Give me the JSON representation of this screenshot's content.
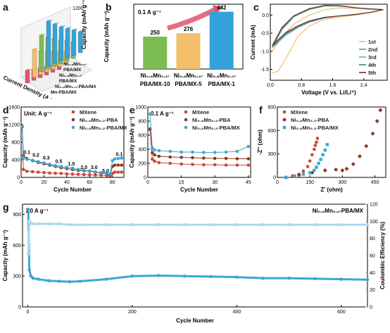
{
  "colors": {
    "mxene": "#c8473c",
    "pba": "#8b3a1f",
    "pbamx": "#3aa7d8",
    "ce": "#a9d9f2",
    "accent_arrow": "#e0556a",
    "bar_green": "#7dbb55",
    "bar_orange": "#f2c06a",
    "bar_blue": "#34a3dc",
    "ce_axis": "#f0a030"
  },
  "panels": {
    "a": {
      "label": "a",
      "zlabel": "Capacity (mAh g⁻¹)",
      "xlabel": "Current Density (A g⁻¹)",
      "ztick": "1200",
      "legend": [
        "Ni₀.₈Mn₀.₂-PBA/MX",
        "Ni₀.₈Mn₀.₂-PBA/MX",
        "Ni₀.₈Mn₀.₂-PBA/MX",
        "Mn-PBA/MX"
      ]
    },
    "b": {
      "label": "b",
      "rate": "0.1 A g⁻¹",
      "ylabel": "Capacity (mAh g⁻¹)"
    },
    "c": {
      "label": "c",
      "ylabel": "Current (mA)",
      "xlabel": "Voltage (V vs. Li/Li⁺)"
    },
    "d": {
      "label": "d",
      "unit_note": "Unit: A g⁻¹",
      "ylabel": "Capacity (mAh g⁻¹)",
      "xlabel": "Cycle Number"
    },
    "e": {
      "label": "e",
      "rate": "0.1 A g⁻¹",
      "ylabel": "Capacity (mAh g⁻¹)",
      "xlabel": "Cycle Number"
    },
    "f": {
      "label": "f",
      "ylabel": "-Z'' (ohm)",
      "xlabel": "Z' (ohm)"
    },
    "g": {
      "label": "g",
      "rate": "1.0 A g⁻¹",
      "material": "Ni₀.₈Mn₀.₂-PBA/MX",
      "ylabel": "Capacity (mAh g⁻¹)",
      "y2label": "Coulombic Efficiency (%)",
      "xlabel": "Cycle Number"
    }
  },
  "chart_data": [
    {
      "type": "bar",
      "panel": "b",
      "categories": [
        "Ni₀.₈Mn₀.₂-PBA/MX-10",
        "Ni₀.₈Mn₀.₂-PBA/MX-5",
        "Ni₀.₈Mn₀.₂-PBA/MX-1"
      ],
      "values": [
        250,
        276,
        442
      ],
      "data_labels": [
        "250",
        "276",
        "442"
      ],
      "ylabel": "Capacity (mAh g⁻¹)",
      "ylim": [
        0,
        500
      ]
    },
    {
      "type": "line",
      "panel": "c",
      "xlabel": "Voltage (V vs. Li/Li⁺)",
      "ylabel": "Current (mA)",
      "xlim": [
        0.0,
        3.0
      ],
      "ylim": [
        -1.8,
        0.3
      ],
      "xticks": [
        "0.0",
        "0.8",
        "1.6",
        "2.4"
      ],
      "yticks": [
        "-1.5",
        "-1.0",
        "-0.5",
        "0.0"
      ],
      "series": [
        {
          "name": "1st",
          "color": "#f2c06a",
          "x": [
            0.05,
            0.3,
            0.6,
            1.0,
            1.4,
            1.8,
            2.2,
            2.6,
            2.9,
            2.6,
            2.2,
            1.8,
            1.4,
            1.0,
            0.7,
            0.4,
            0.2,
            0.05
          ],
          "y": [
            -1.0,
            -0.6,
            -0.25,
            0.0,
            0.15,
            0.2,
            0.18,
            0.15,
            0.15,
            0.08,
            0.0,
            -0.05,
            -0.12,
            -0.3,
            -0.6,
            -1.2,
            -1.55,
            -1.6
          ]
        },
        {
          "name": "2nd",
          "color": "#4f96c8",
          "x": [
            0.05,
            0.3,
            0.6,
            1.0,
            1.4,
            1.8,
            2.2,
            2.6,
            2.9,
            2.6,
            2.2,
            1.8,
            1.4,
            1.0,
            0.7,
            0.4,
            0.2,
            0.05
          ],
          "y": [
            -0.9,
            -0.4,
            -0.05,
            0.15,
            0.25,
            0.25,
            0.2,
            0.17,
            0.15,
            0.08,
            0.02,
            -0.02,
            -0.08,
            -0.2,
            -0.35,
            -0.55,
            -0.75,
            -0.9
          ]
        },
        {
          "name": "3rd",
          "color": "#7aaf7a",
          "x": [
            0.05,
            0.3,
            0.6,
            1.0,
            1.4,
            1.8,
            2.2,
            2.6,
            2.9,
            2.6,
            2.2,
            1.8,
            1.4,
            1.0,
            0.7,
            0.4,
            0.2,
            0.05
          ],
          "y": [
            -0.88,
            -0.38,
            -0.04,
            0.16,
            0.26,
            0.25,
            0.2,
            0.17,
            0.15,
            0.08,
            0.02,
            -0.02,
            -0.07,
            -0.18,
            -0.33,
            -0.52,
            -0.72,
            -0.88
          ]
        },
        {
          "name": "4th",
          "color": "#2e8b8b",
          "x": [
            0.05,
            0.3,
            0.6,
            1.0,
            1.4,
            1.8,
            2.2,
            2.6,
            2.9,
            2.6,
            2.2,
            1.8,
            1.4,
            1.0,
            0.7,
            0.4,
            0.2,
            0.05
          ],
          "y": [
            -0.86,
            -0.36,
            -0.03,
            0.17,
            0.26,
            0.25,
            0.2,
            0.17,
            0.15,
            0.08,
            0.02,
            -0.02,
            -0.07,
            -0.17,
            -0.31,
            -0.5,
            -0.7,
            -0.86
          ]
        },
        {
          "name": "5th",
          "color": "#7a2f2f",
          "x": [
            0.05,
            0.3,
            0.6,
            1.0,
            1.4,
            1.8,
            2.2,
            2.6,
            2.9,
            2.6,
            2.2,
            1.8,
            1.4,
            1.0,
            0.7,
            0.4,
            0.2,
            0.05
          ],
          "y": [
            -0.84,
            -0.34,
            -0.02,
            0.18,
            0.27,
            0.26,
            0.2,
            0.17,
            0.15,
            0.08,
            0.02,
            -0.02,
            -0.06,
            -0.16,
            -0.3,
            -0.48,
            -0.68,
            -0.84
          ]
        }
      ]
    },
    {
      "type": "line",
      "panel": "d",
      "xlabel": "Cycle Number",
      "ylabel": "Capacity (mAh g⁻¹)",
      "xlim": [
        0,
        90
      ],
      "ylim": [
        0,
        1600
      ],
      "xticks": [
        0,
        20,
        40,
        60,
        80
      ],
      "yticks": [
        0,
        400,
        800,
        1200,
        1600
      ],
      "annotations": [
        {
          "text": "0.1",
          "x": 5,
          "y": 540
        },
        {
          "text": "0.2",
          "x": 13,
          "y": 470
        },
        {
          "text": "0.3",
          "x": 22,
          "y": 410
        },
        {
          "text": "0.5",
          "x": 33,
          "y": 330
        },
        {
          "text": "1.0",
          "x": 44,
          "y": 270
        },
        {
          "text": "2.0",
          "x": 55,
          "y": 190
        },
        {
          "text": "3.0",
          "x": 64,
          "y": 190
        },
        {
          "text": "5.0",
          "x": 74,
          "y": 110
        },
        {
          "text": "0.1",
          "x": 86,
          "y": 490
        }
      ],
      "series": [
        {
          "name": "MXene",
          "color": "#c8473c",
          "x": [
            1,
            2,
            5,
            10,
            15,
            20,
            25,
            30,
            35,
            40,
            45,
            50,
            55,
            60,
            65,
            70,
            75,
            78,
            80,
            82,
            85,
            88
          ],
          "y": [
            1150,
            180,
            140,
            130,
            120,
            110,
            100,
            95,
            90,
            80,
            75,
            70,
            65,
            60,
            55,
            50,
            45,
            40,
            90,
            120,
            120,
            120
          ]
        },
        {
          "name": "Ni₀.₈Mn₀.₂-PBA",
          "color": "#8b3a1f",
          "x": [
            1,
            2,
            5,
            10,
            15,
            20,
            25,
            30,
            35,
            40,
            45,
            50,
            55,
            60,
            65,
            70,
            75,
            78,
            80,
            82,
            85,
            88
          ],
          "y": [
            1150,
            500,
            430,
            380,
            340,
            310,
            280,
            250,
            220,
            200,
            180,
            160,
            150,
            140,
            120,
            100,
            80,
            70,
            250,
            280,
            280,
            280
          ]
        },
        {
          "name": "Ni₀.₈Mn₀.₂-PBA/MX",
          "color": "#3aa7d8",
          "x": [
            1,
            2,
            5,
            10,
            15,
            20,
            25,
            30,
            35,
            40,
            45,
            50,
            55,
            60,
            65,
            70,
            75,
            78,
            80,
            82,
            85,
            88
          ],
          "y": [
            1150,
            440,
            410,
            390,
            360,
            330,
            300,
            270,
            250,
            230,
            210,
            180,
            160,
            150,
            130,
            110,
            90,
            80,
            380,
            420,
            430,
            440
          ]
        }
      ]
    },
    {
      "type": "line",
      "panel": "e",
      "xlabel": "Cycle Number",
      "ylabel": "Capacity (mAh g⁻¹)",
      "xlim": [
        0,
        46
      ],
      "ylim": [
        0,
        1000
      ],
      "xticks": [
        0,
        15,
        30,
        45
      ],
      "yticks": [
        0,
        200,
        400,
        600,
        800,
        1000
      ],
      "series": [
        {
          "name": "MXene",
          "color": "#c8473c",
          "x": [
            1,
            2,
            3,
            5,
            10,
            15,
            20,
            25,
            30,
            35,
            40,
            45
          ],
          "y": [
            680,
            260,
            230,
            210,
            200,
            190,
            185,
            180,
            180,
            175,
            175,
            175
          ]
        },
        {
          "name": "Ni₀.₈Mn₀.₂-PBA",
          "color": "#8b3a1f",
          "x": [
            1,
            2,
            3,
            5,
            10,
            15,
            20,
            25,
            30,
            35,
            40,
            45
          ],
          "y": [
            690,
            350,
            320,
            300,
            290,
            285,
            280,
            275,
            270,
            270,
            265,
            265
          ]
        },
        {
          "name": "Ni₀.₈Mn₀.₂-PBA/MX",
          "color": "#3aa7d8",
          "x": [
            1,
            2,
            3,
            5,
            10,
            15,
            20,
            25,
            30,
            35,
            40,
            45
          ],
          "y": [
            900,
            420,
            390,
            380,
            370,
            360,
            360,
            355,
            355,
            360,
            370,
            440
          ]
        }
      ]
    },
    {
      "type": "scatter",
      "panel": "f",
      "xlabel": "Z' (ohm)",
      "ylabel": "-Z'' (ohm)",
      "xlim": [
        0,
        500
      ],
      "ylim": [
        0,
        900
      ],
      "xticks": [
        0,
        150,
        300,
        450
      ],
      "yticks": [
        0,
        300,
        600,
        900
      ],
      "series": [
        {
          "name": "MXene",
          "color": "#c8473c",
          "marker": "circle",
          "x": [
            40,
            70,
            100,
            120,
            140,
            150,
            160,
            170,
            175,
            180,
            185
          ],
          "y": [
            0,
            20,
            40,
            80,
            140,
            210,
            290,
            360,
            410,
            450,
            500
          ]
        },
        {
          "name": "Ni₀.₈Mn₀.₂-PBA",
          "color": "#8b3a1f",
          "marker": "diamond",
          "x": [
            40,
            100,
            160,
            220,
            270,
            300,
            320,
            350,
            380,
            410,
            440,
            460,
            475
          ],
          "y": [
            0,
            30,
            60,
            90,
            100,
            90,
            110,
            170,
            270,
            400,
            560,
            720,
            860
          ]
        },
        {
          "name": "Ni₀.₈Mn₀.₂-PBA/MX",
          "color": "#3aa7d8",
          "marker": "square",
          "x": [
            40,
            80,
            120,
            150,
            170,
            180,
            190,
            200,
            210,
            220,
            230
          ],
          "y": [
            0,
            20,
            40,
            60,
            90,
            130,
            180,
            230,
            290,
            350,
            420
          ]
        }
      ]
    },
    {
      "type": "line",
      "panel": "g",
      "xlabel": "Cycle Number",
      "ylabel": "Capacity (mAh g⁻¹)",
      "y2label": "Coulombic Efficiency (%)",
      "xlim": [
        -10,
        650
      ],
      "ylim": [
        0,
        1000
      ],
      "y2lim": [
        0,
        120
      ],
      "xticks": [
        0,
        200,
        400,
        600
      ],
      "yticks": [
        0,
        300,
        600,
        900
      ],
      "y2ticks": [
        0,
        20,
        40,
        60,
        80,
        100,
        120
      ],
      "series": [
        {
          "name": "Capacity",
          "color": "#3aa7d8",
          "x": [
            1,
            3,
            6,
            10,
            20,
            40,
            60,
            80,
            100,
            150,
            200,
            250,
            300,
            350,
            400,
            450,
            500,
            550,
            600,
            650
          ],
          "y": [
            950,
            360,
            300,
            280,
            270,
            255,
            250,
            245,
            250,
            270,
            300,
            305,
            300,
            295,
            290,
            280,
            280,
            275,
            270,
            265
          ]
        },
        {
          "name": "Coulombic Efficiency",
          "color": "#a9d9f2",
          "axis": "y2",
          "x": [
            1,
            3,
            6,
            10,
            20,
            40,
            60,
            80,
            100,
            150,
            200,
            250,
            300,
            350,
            400,
            450,
            500,
            550,
            600,
            650
          ],
          "y": [
            62,
            100,
            98,
            97,
            97,
            97,
            97,
            96,
            96,
            96,
            96,
            96,
            96,
            96,
            96,
            96,
            96,
            96,
            96,
            96
          ]
        }
      ]
    },
    {
      "type": "bar",
      "panel": "a",
      "subtype": "3d-bar",
      "zlabel": "Capacity (mAh g⁻¹)",
      "xlabel": "Current Density (A g⁻¹)",
      "series": [
        {
          "name": "Mn-PBA/MX",
          "color": "#e0556a"
        },
        {
          "name": "Ni₀.₈Mn₀.₂-PBA/MX",
          "color": "#f2c06a"
        },
        {
          "name": "Ni₀.₈Mn₀.₂-PBA/MX",
          "color": "#7dbb55"
        },
        {
          "name": "Ni₀.₈Mn₀.₂-PBA/MX",
          "color": "#34a3dc"
        }
      ]
    }
  ]
}
